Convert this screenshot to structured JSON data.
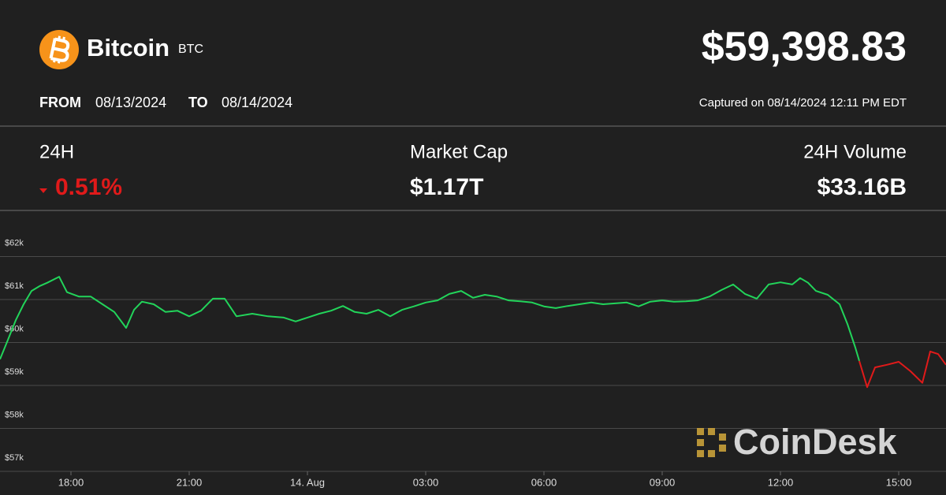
{
  "header": {
    "name": "Bitcoin",
    "ticker": "BTC",
    "price": "$59,398.83",
    "from_label": "FROM",
    "from": "08/13/2024",
    "to_label": "TO",
    "to": "08/14/2024",
    "captured": "Captured on 08/14/2024 12:11 PM EDT"
  },
  "stats": [
    {
      "label": "24H",
      "value": "0.51%"
    },
    {
      "label": "Market Cap",
      "value": "$1.17T"
    },
    {
      "label": "24H Volume",
      "value": "$33.16B"
    }
  ],
  "brand": "CoinDesk",
  "chart_data": {
    "type": "line",
    "x": [
      16.2,
      16.4,
      16.6,
      16.8,
      17.0,
      17.2,
      17.4,
      17.7,
      17.9,
      18.2,
      18.5,
      18.8,
      19.1,
      19.4,
      19.6,
      19.8,
      20.1,
      20.4,
      20.7,
      21.0,
      21.3,
      21.6,
      21.9,
      22.2,
      22.6,
      23.0,
      23.4,
      23.7,
      24.0,
      24.3,
      24.6,
      24.9,
      25.2,
      25.5,
      25.8,
      26.1,
      26.4,
      26.7,
      27.0,
      27.3,
      27.6,
      27.9,
      28.2,
      28.5,
      28.8,
      29.1,
      29.4,
      29.7,
      30.0,
      30.3,
      30.6,
      30.9,
      31.2,
      31.5,
      31.8,
      32.1,
      32.4,
      32.7,
      33.0,
      33.3,
      33.6,
      33.9,
      34.2,
      34.5,
      34.8,
      35.1,
      35.4,
      35.7,
      36.0,
      36.3,
      36.5,
      36.7,
      36.9,
      37.2,
      37.5,
      37.7,
      37.9,
      38.0,
      38.2,
      38.4,
      38.7,
      39.0,
      39.3,
      39.6,
      39.8,
      40.0,
      40.2
    ],
    "series": [
      {
        "color": "#22d45a",
        "values": [
          59610,
          60060,
          60520,
          60890,
          61200,
          61310,
          61390,
          61530,
          61170,
          61070,
          61070,
          60890,
          60710,
          60340,
          60760,
          60950,
          60890,
          60710,
          60740,
          60610,
          60740,
          61020,
          61020,
          60610,
          60670,
          60610,
          60580,
          60490,
          60580,
          60670,
          60740,
          60850,
          60710,
          60670,
          60760,
          60610,
          60760,
          60840,
          60930,
          60980,
          61130,
          61200,
          61040,
          61110,
          61070,
          60980,
          60960,
          60930,
          60840,
          60800,
          60850,
          60890,
          60930,
          60890,
          60910,
          60930,
          60840,
          60950,
          60980,
          60950,
          60960,
          60980,
          61070,
          61220,
          61350,
          61130,
          61020,
          61350,
          61400,
          61350,
          61500,
          61390,
          61200,
          61110,
          60890,
          60430,
          59880,
          59570,
          null,
          null,
          null,
          null,
          null,
          null,
          null,
          null,
          null
        ]
      },
      {
        "color": "#e01a1a",
        "values": [
          null,
          null,
          null,
          null,
          null,
          null,
          null,
          null,
          null,
          null,
          null,
          null,
          null,
          null,
          null,
          null,
          null,
          null,
          null,
          null,
          null,
          null,
          null,
          null,
          null,
          null,
          null,
          null,
          null,
          null,
          null,
          null,
          null,
          null,
          null,
          null,
          null,
          null,
          null,
          null,
          null,
          null,
          null,
          null,
          null,
          null,
          null,
          null,
          null,
          null,
          null,
          null,
          null,
          null,
          null,
          null,
          null,
          null,
          null,
          null,
          null,
          null,
          null,
          null,
          null,
          null,
          null,
          null,
          null,
          null,
          null,
          null,
          null,
          null,
          null,
          null,
          null,
          59570,
          58960,
          59420,
          59480,
          59550,
          59330,
          59060,
          59790,
          59730,
          59480
        ]
      }
    ],
    "xlim": [
      16.2,
      40.2
    ],
    "xticks": [
      {
        "value": 18,
        "label": "18:00"
      },
      {
        "value": 21,
        "label": "21:00"
      },
      {
        "value": 24,
        "label": "14. Aug"
      },
      {
        "value": 27,
        "label": "03:00"
      },
      {
        "value": 30,
        "label": "06:00"
      },
      {
        "value": 33,
        "label": "09:00"
      },
      {
        "value": 36,
        "label": "12:00"
      },
      {
        "value": 39,
        "label": "15:00"
      }
    ],
    "ylim": [
      57000,
      63000
    ],
    "yticks": [
      {
        "value": 57000,
        "label": "$57k"
      },
      {
        "value": 58000,
        "label": "$58k"
      },
      {
        "value": 59000,
        "label": "$59k"
      },
      {
        "value": 60000,
        "label": "$60k"
      },
      {
        "value": 61000,
        "label": "$61k"
      },
      {
        "value": 62000,
        "label": "$62k"
      }
    ],
    "grid": true
  }
}
